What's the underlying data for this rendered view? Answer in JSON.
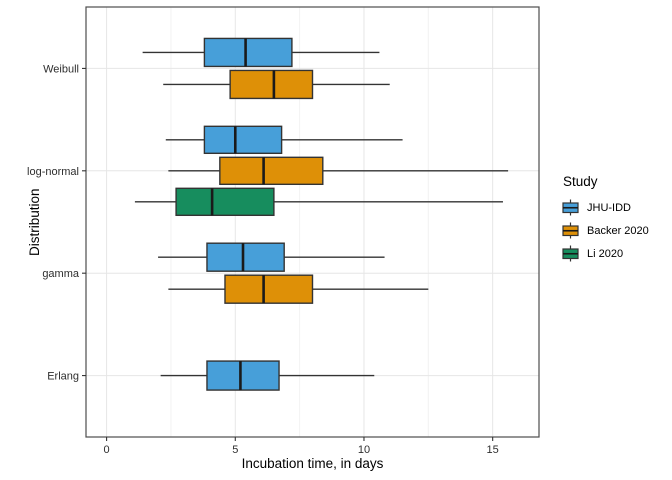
{
  "chart_data": {
    "type": "boxplot",
    "orientation": "horizontal",
    "title": "",
    "xlabel": "Incubation time, in days",
    "ylabel": "Distribution",
    "legend_title": "Study",
    "legend_position": "right",
    "categories": [
      "Weibull",
      "log-normal",
      "gamma",
      "Erlang"
    ],
    "x_ticks": [
      "0",
      "5",
      "10",
      "15"
    ],
    "x_tick_values": [
      0,
      5,
      10,
      15
    ],
    "x_minor_tick_values": [
      2.5,
      7.5,
      12.5
    ],
    "xlim": [
      -0.8,
      16.8
    ],
    "grid": true,
    "studies": [
      {
        "name": "JHU-IDD",
        "color": "#479FD9"
      },
      {
        "name": "Backer 2020",
        "color": "#DE9007"
      },
      {
        "name": "Li 2020",
        "color": "#178D5E"
      }
    ],
    "boxes": [
      {
        "category": "Weibull",
        "study": "JHU-IDD",
        "whisker_low": 1.4,
        "q1": 3.8,
        "median": 5.4,
        "q3": 7.2,
        "whisker_high": 10.6
      },
      {
        "category": "Weibull",
        "study": "Backer 2020",
        "whisker_low": 2.2,
        "q1": 4.8,
        "median": 6.5,
        "q3": 8.0,
        "whisker_high": 11.0
      },
      {
        "category": "log-normal",
        "study": "JHU-IDD",
        "whisker_low": 2.3,
        "q1": 3.8,
        "median": 5.0,
        "q3": 6.8,
        "whisker_high": 11.5
      },
      {
        "category": "log-normal",
        "study": "Backer 2020",
        "whisker_low": 2.4,
        "q1": 4.4,
        "median": 6.1,
        "q3": 8.4,
        "whisker_high": 15.6
      },
      {
        "category": "log-normal",
        "study": "Li 2020",
        "whisker_low": 1.1,
        "q1": 2.7,
        "median": 4.1,
        "q3": 6.5,
        "whisker_high": 15.4
      },
      {
        "category": "gamma",
        "study": "JHU-IDD",
        "whisker_low": 2.0,
        "q1": 3.9,
        "median": 5.3,
        "q3": 6.9,
        "whisker_high": 10.8
      },
      {
        "category": "gamma",
        "study": "Backer 2020",
        "whisker_low": 2.4,
        "q1": 4.6,
        "median": 6.1,
        "q3": 8.0,
        "whisker_high": 12.5
      },
      {
        "category": "Erlang",
        "study": "JHU-IDD",
        "whisker_low": 2.1,
        "q1": 3.9,
        "median": 5.2,
        "q3": 6.7,
        "whisker_high": 10.4
      }
    ],
    "style": {
      "box_border": "#333333",
      "median_color": "#1a1a1a",
      "whisker_color": "#333333",
      "grid_major": "#E6E6E6",
      "grid_minor": "#F2F2F2",
      "panel_border": "#4D4D4D",
      "tick_mark": "#333333",
      "tick_text": "#2E2E2E",
      "background": "#FFFFFF"
    }
  }
}
